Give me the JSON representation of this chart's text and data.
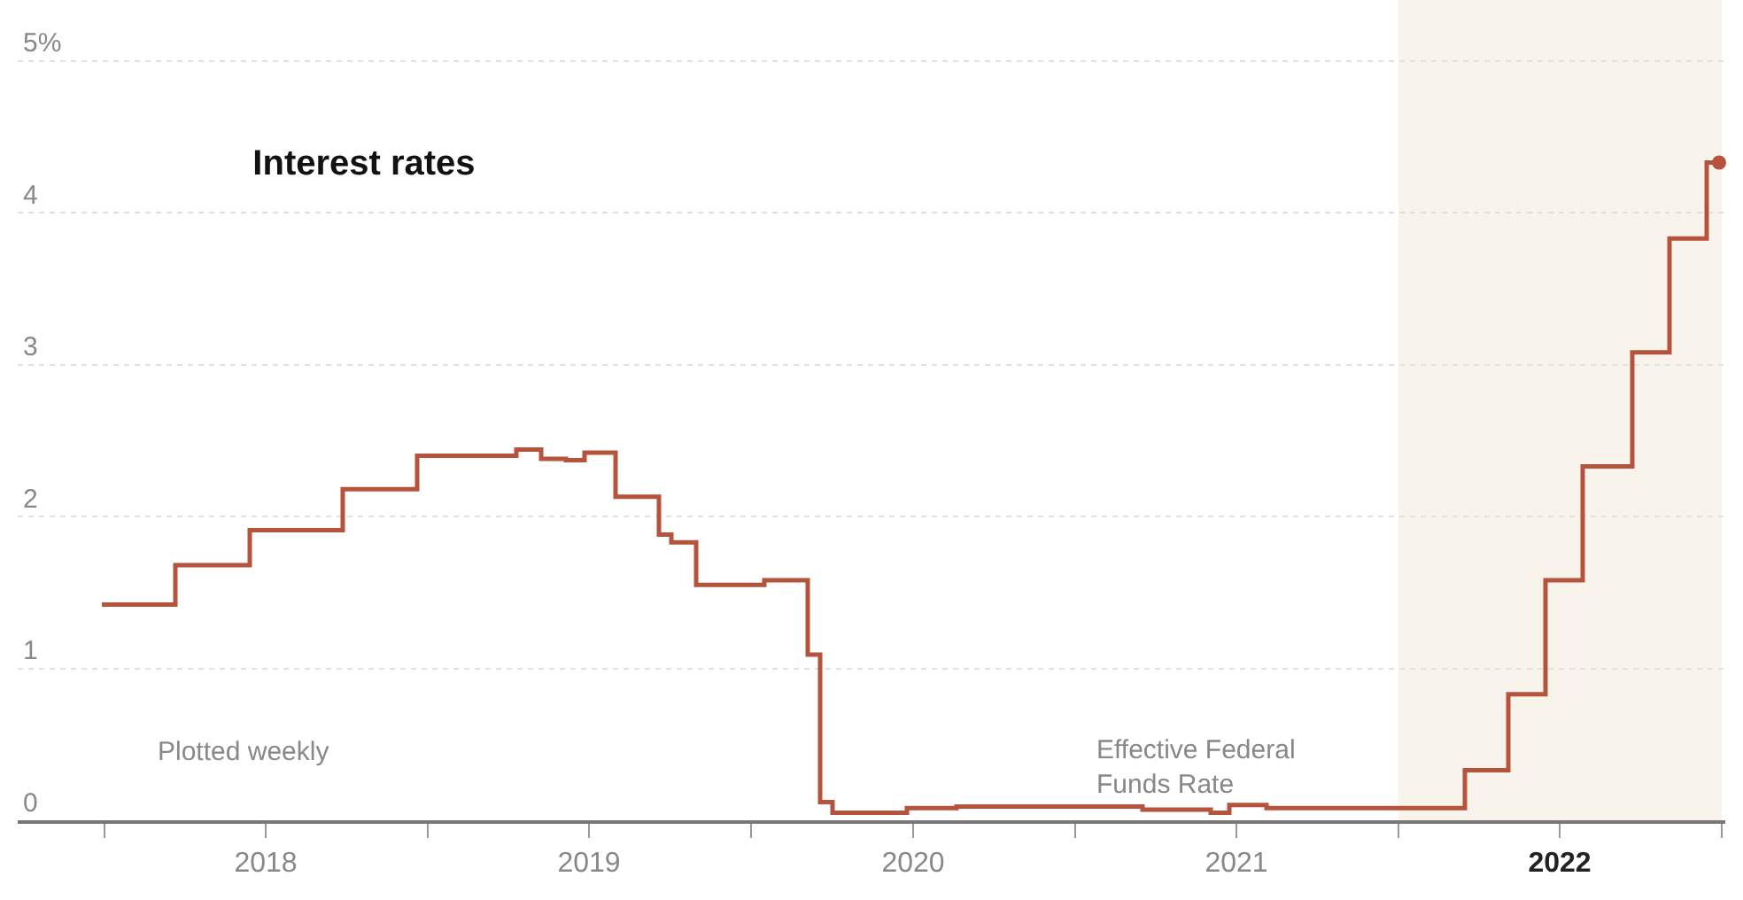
{
  "chart_data": {
    "type": "step",
    "title": "Interest rates",
    "x": [
      "2017-12-29",
      "2018-03-22",
      "2018-06-14",
      "2018-09-27",
      "2018-12-20",
      "2019-03-07",
      "2019-04-11",
      "2019-05-09",
      "2019-06-06",
      "2019-06-27",
      "2019-08-01",
      "2019-09-19",
      "2019-10-03",
      "2019-10-31",
      "2019-12-26",
      "2020-01-16",
      "2020-03-05",
      "2020-03-19",
      "2020-04-02",
      "2020-06-25",
      "2020-08-20",
      "2020-12-31",
      "2021-03-18",
      "2021-06-03",
      "2021-06-24",
      "2021-08-05",
      "2021-12-30",
      "2022-03-17",
      "2022-05-05",
      "2022-06-16",
      "2022-07-28",
      "2022-09-22",
      "2022-11-03",
      "2022-12-15",
      "2022-12-29"
    ],
    "series": [
      {
        "color": "#b5533c",
        "values": [
          1.42,
          1.68,
          1.91,
          2.18,
          2.4,
          2.4,
          2.44,
          2.38,
          2.37,
          2.42,
          2.13,
          1.88,
          1.83,
          1.55,
          1.55,
          1.58,
          1.09,
          0.12,
          0.05,
          0.08,
          0.09,
          0.09,
          0.07,
          0.05,
          0.1,
          0.08,
          0.08,
          0.33,
          0.83,
          1.58,
          2.33,
          3.08,
          3.83,
          4.33,
          4.33
        ]
      },
      {
        "type": "scatter",
        "marker": "circle",
        "color": "#b5533c",
        "x": [
          "2022-12-29"
        ],
        "values": [
          4.33
        ]
      }
    ],
    "xlim": [
      "2017-09-25",
      "2023-01-05"
    ],
    "xticks": [
      {
        "value": "2018-01-01",
        "label": null
      },
      {
        "value": "2018-07-02",
        "label": "2018"
      },
      {
        "value": "2019-01-01",
        "label": null
      },
      {
        "value": "2019-07-02",
        "label": "2019"
      },
      {
        "value": "2020-01-01",
        "label": null
      },
      {
        "value": "2020-07-02",
        "label": "2020"
      },
      {
        "value": "2021-01-01",
        "label": null
      },
      {
        "value": "2021-07-02",
        "label": "2021"
      },
      {
        "value": "2022-01-01",
        "label": null
      },
      {
        "value": "2022-07-02",
        "label": "2022"
      },
      {
        "value": "2023-01-01",
        "label": null
      }
    ],
    "ylim": [
      0,
      5.4
    ],
    "yticks": [
      0,
      1,
      2,
      3,
      4,
      {
        "value": 5,
        "label": "5%"
      }
    ],
    "grid": "y",
    "bands": [
      {
        "axis": "x",
        "from": "2022-01-01",
        "to": "2023-01-01",
        "color": "#f8f4ec"
      }
    ],
    "annotations": [
      "Plotted weekly",
      "Effective Federal\nFunds Rate"
    ]
  }
}
